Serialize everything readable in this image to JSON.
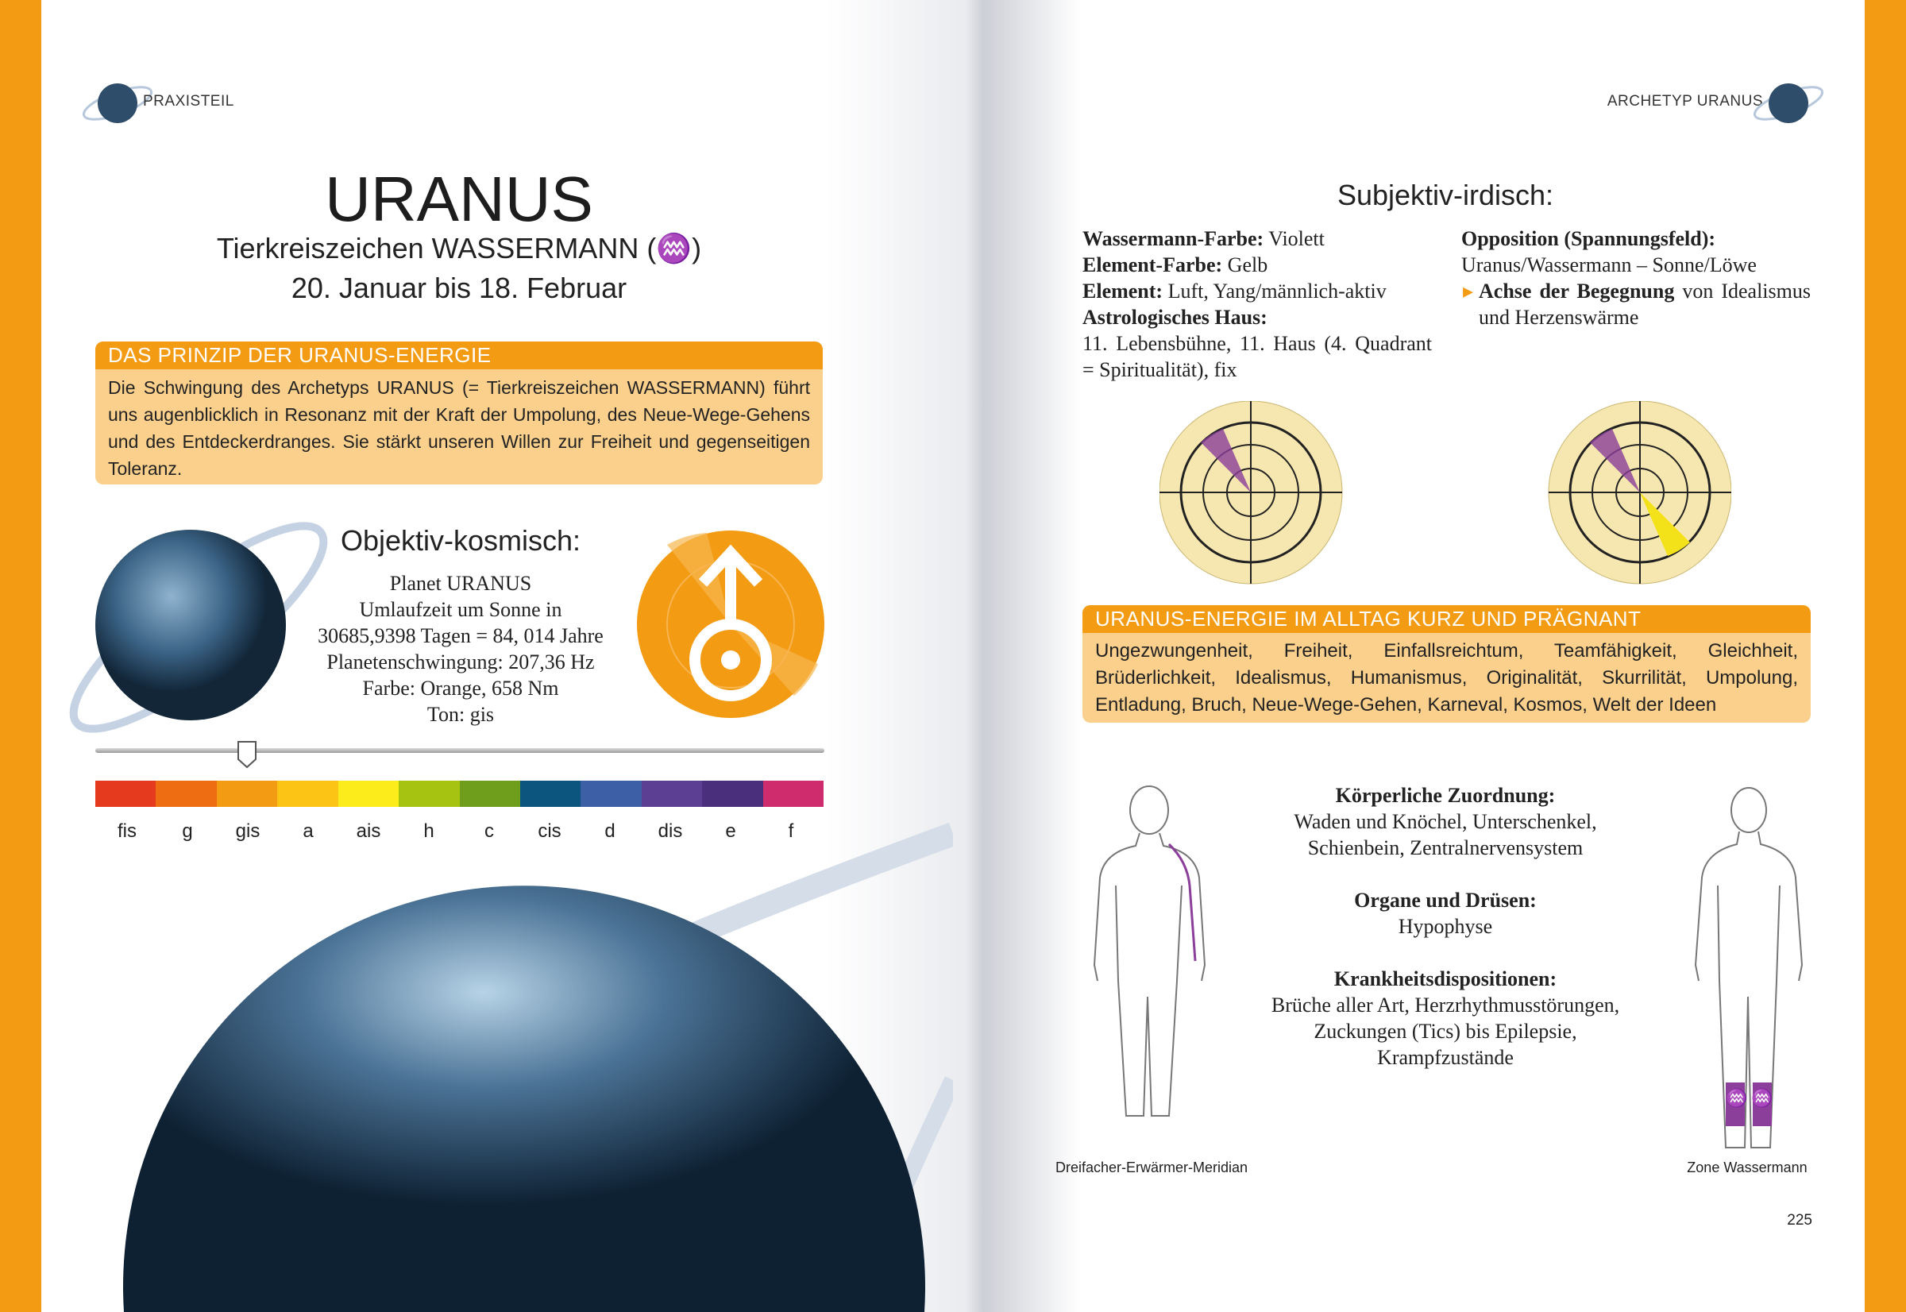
{
  "colors": {
    "accent": "#f39b13",
    "box": "#fbd08c"
  },
  "left": {
    "header": "PRAXISTEIL",
    "title": "URANUS",
    "subtitle": "Tierkreiszeichen WASSERMANN (♒)",
    "dates": "20. Januar bis 18. Februar",
    "principle": {
      "title": "DAS PRINZIP DER URANUS-ENERGIE",
      "text": "Die Schwingung des Archetyps URANUS (= Tierkreiszeichen WASSERMANN) führt uns augenblicklich in Resonanz mit der Kraft der Umpolung, des Neue-Wege-Gehens und des Entdeckerdranges. Sie stärkt unseren Willen zur Freiheit und gegenseitigen Toleranz."
    },
    "objective": {
      "title": "Objektiv-kosmisch:",
      "lines": [
        "Planet URANUS",
        "Umlaufzeit um Sonne in",
        "30685,9398 Tagen = 84, 014 Jahre",
        "Planetenschwingung: 207,36 Hz",
        "Farbe: Orange, 658 Nm",
        "Ton: gis"
      ]
    },
    "symbol_icon": "uranus-symbol",
    "slider": {
      "selected_note": "gis"
    },
    "notes": [
      {
        "label": "fis",
        "color": "#e63a1e"
      },
      {
        "label": "g",
        "color": "#ee6c12"
      },
      {
        "label": "gis",
        "color": "#f39b13"
      },
      {
        "label": "a",
        "color": "#fcc516"
      },
      {
        "label": "ais",
        "color": "#fdec1b"
      },
      {
        "label": "h",
        "color": "#a6c312"
      },
      {
        "label": "c",
        "color": "#6f9d1c"
      },
      {
        "label": "cis",
        "color": "#0b557e"
      },
      {
        "label": "d",
        "color": "#3d5fa6"
      },
      {
        "label": "dis",
        "color": "#5c3f92"
      },
      {
        "label": "e",
        "color": "#4a2f7c"
      },
      {
        "label": "f",
        "color": "#cf2c6d"
      }
    ]
  },
  "right": {
    "header": "ARCHETYP URANUS",
    "subjective_title": "Subjektiv-irdisch:",
    "col1": [
      {
        "k": "Wassermann-Farbe:",
        "v": " Violett"
      },
      {
        "k": "Element-Farbe:",
        "v": " Gelb"
      },
      {
        "k": "Element:",
        "v": " Luft, Yang/männlich-aktiv"
      },
      {
        "k": "Astrologisches Haus:",
        "v": ""
      },
      {
        "k": "",
        "v": "11. Lebensbühne, 11. Haus (4. Quadrant = Spiritualität), fix"
      }
    ],
    "col2": {
      "k": "Opposition (Spannungsfeld):",
      "v": "Uranus/Wassermann – Sonne/Löwe",
      "bullet_k": "Achse der Begegnung",
      "bullet_v": " von Idealismus und Herzenswärme"
    },
    "everyday": {
      "title": "URANUS-ENERGIE IM ALLTAG KURZ UND PRÄGNANT",
      "text": "Ungezwungenheit, Freiheit, Einfallsreichtum, Teamfähigkeit, Gleichheit, Brüderlichkeit, Idealismus, Humanismus, Originalität, Skurrilität, Umpolung, Entladung, Bruch, Neue-Wege-Gehen, Karneval, Kosmos, Welt der Ideen"
    },
    "body": [
      {
        "k": "Körperliche Zuordnung:",
        "v": "Waden und Knöchel, Unterschenkel, Schienbein, Zentralnervensystem"
      },
      {
        "k": "Organe und Drüsen:",
        "v": "Hypophyse"
      },
      {
        "k": "Krankheitsdispositionen:",
        "v": "Brüche aller Art, Herzrhythmusstörungen, Zuckungen (Tics) bis Epilepsie, Krampfzustände"
      }
    ],
    "caption_left": "Dreifacher-Erwärmer-Meridian",
    "caption_right": "Zone Wassermann",
    "page_number": "225"
  }
}
